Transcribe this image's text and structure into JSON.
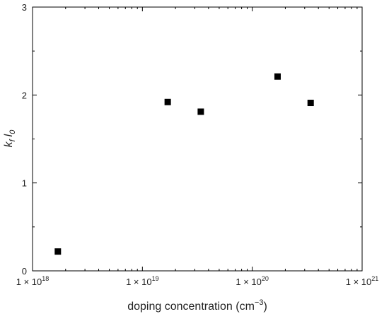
{
  "chart_data": {
    "type": "scatter",
    "xscale": "log",
    "xlim": [
      1e+18,
      1e+21
    ],
    "ylim": [
      0,
      3
    ],
    "x_ticks": [
      {
        "value": 1e+18,
        "base": "1 × 10",
        "exp": "18"
      },
      {
        "value": 1e+19,
        "base": "1 × 10",
        "exp": "19"
      },
      {
        "value": 1e+20,
        "base": "1 × 10",
        "exp": "20"
      },
      {
        "value": 1e+21,
        "base": "1 × 10",
        "exp": "21"
      }
    ],
    "y_ticks": [
      "0",
      "1",
      "2",
      "3"
    ],
    "xlabel": {
      "text": "doping concentration (cm",
      "sup": "−3",
      "tail": ")"
    },
    "ylabel": {
      "k": "k",
      "k_sub": "f",
      "l": "l",
      "l_sub": "0"
    },
    "grid": false,
    "legend": "none",
    "marker": "square",
    "color": "#000000",
    "series": [
      {
        "points": [
          {
            "x": 1.7e+18,
            "y": 0.22
          },
          {
            "x": 1.7e+19,
            "y": 1.92
          },
          {
            "x": 3.4e+19,
            "y": 1.81
          },
          {
            "x": 1.7e+20,
            "y": 2.21
          },
          {
            "x": 3.4e+20,
            "y": 1.91
          }
        ]
      }
    ]
  }
}
